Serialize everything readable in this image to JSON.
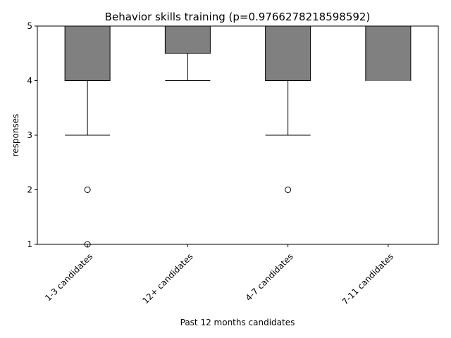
{
  "chart_data": {
    "type": "box",
    "title": "Behavior skills training (p=0.9766278218598592)",
    "xlabel": "Past 12 months candidates",
    "ylabel": "responses",
    "ylim": [
      1,
      5
    ],
    "yticks": [
      "1",
      "2",
      "3",
      "4",
      "5"
    ],
    "grid": false,
    "categories": [
      "1-3 candidates",
      "12+ candidates",
      "4-7 candidates",
      "7-11 candidates"
    ],
    "boxes": [
      {
        "q1": 4,
        "median": 5,
        "q3": 5,
        "whisker_low": 3,
        "whisker_high": 5,
        "outliers": [
          2,
          1
        ]
      },
      {
        "q1": 4.5,
        "median": 5,
        "q3": 5,
        "whisker_low": 4,
        "whisker_high": 5,
        "outliers": []
      },
      {
        "q1": 4,
        "median": 5,
        "q3": 5,
        "whisker_low": 3,
        "whisker_high": 5,
        "outliers": [
          2
        ]
      },
      {
        "q1": 4,
        "median": 4,
        "q3": 5,
        "whisker_low": 4,
        "whisker_high": 5,
        "outliers": []
      }
    ],
    "box_color": "#808080",
    "line_color": "#000000",
    "median_color": "#808080"
  }
}
